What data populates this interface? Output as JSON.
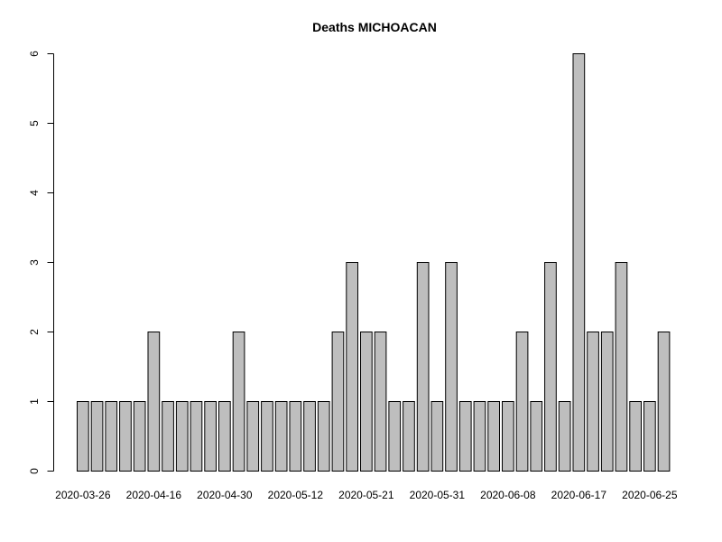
{
  "chart_data": {
    "type": "bar",
    "title": "Deaths MICHOACAN",
    "xlabel": "",
    "ylabel": "",
    "ylim": [
      0,
      6
    ],
    "yticks": [
      0,
      1,
      2,
      3,
      4,
      5,
      6
    ],
    "grid": false,
    "bar_color": "#bebebe",
    "x_tick_labels": [
      {
        "index": 0,
        "label": "2020-03-26"
      },
      {
        "index": 5,
        "label": "2020-04-16"
      },
      {
        "index": 10,
        "label": "2020-04-30"
      },
      {
        "index": 15,
        "label": "2020-05-12"
      },
      {
        "index": 20,
        "label": "2020-05-21"
      },
      {
        "index": 25,
        "label": "2020-05-31"
      },
      {
        "index": 30,
        "label": "2020-06-08"
      },
      {
        "index": 35,
        "label": "2020-06-17"
      },
      {
        "index": 40,
        "label": "2020-06-25"
      }
    ],
    "values": [
      1,
      1,
      1,
      1,
      1,
      2,
      1,
      1,
      1,
      1,
      1,
      2,
      1,
      1,
      1,
      1,
      1,
      1,
      2,
      3,
      2,
      2,
      1,
      1,
      3,
      1,
      3,
      1,
      1,
      1,
      1,
      2,
      1,
      3,
      1,
      6,
      2,
      2,
      3,
      1,
      1,
      2
    ]
  }
}
